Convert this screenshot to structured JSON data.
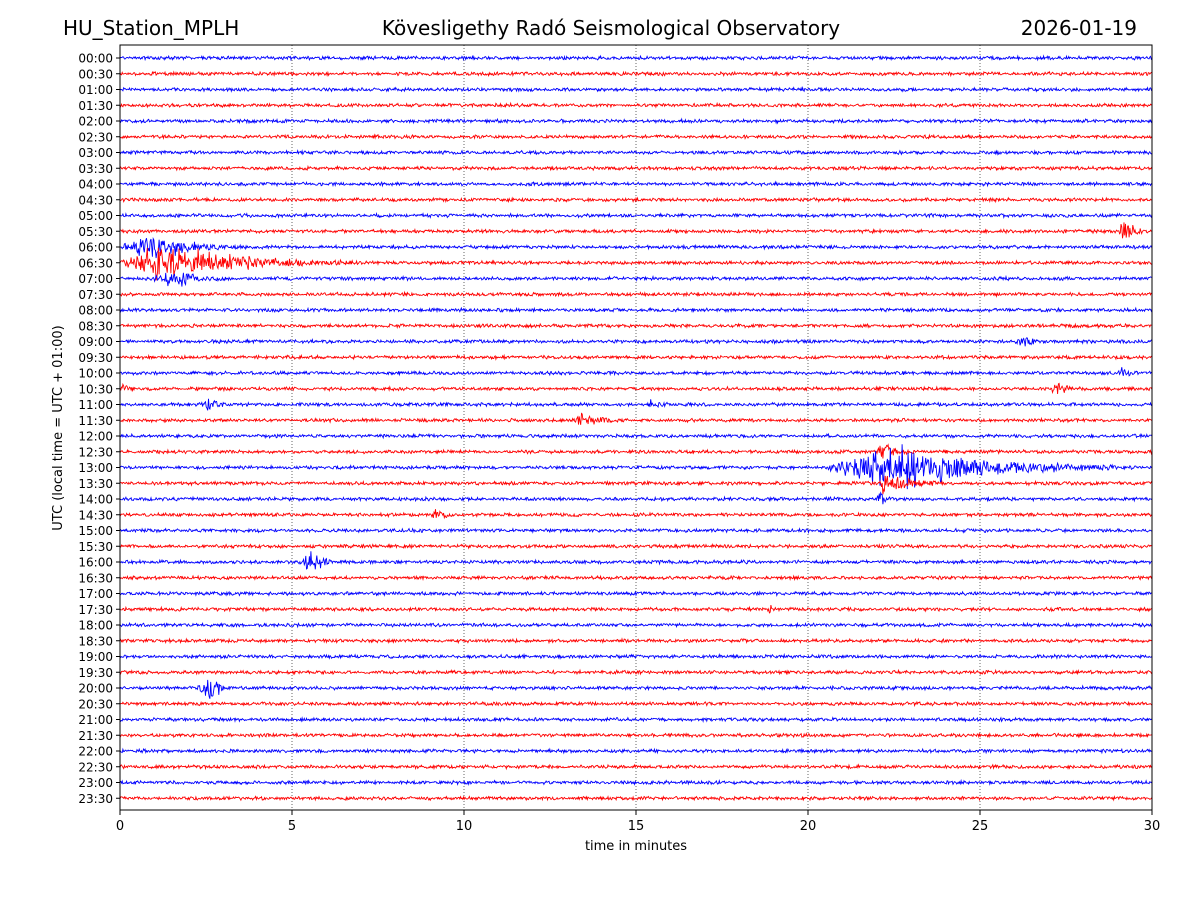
{
  "header": {
    "station": "HU_Station_MPLH",
    "observatory": "Kövesligethy Radó Seismological Observatory",
    "date": "2026-01-19"
  },
  "colors": {
    "even_rows": "#0000ff",
    "odd_rows": "#ff0000",
    "axis": "#000000",
    "grid": "#000000"
  },
  "chart_data": {
    "type": "line",
    "title": "Kövesligethy Radó Seismological Observatory",
    "xlabel": "time in minutes",
    "ylabel": "UTC (local time = UTC + 01:00)",
    "xlim": [
      0,
      30
    ],
    "x_ticks": [
      0,
      5,
      10,
      15,
      20,
      25,
      30
    ],
    "x_tick_labels": [
      "0",
      "5",
      "10",
      "15",
      "20",
      "25",
      "30"
    ],
    "grid": "vertical dotted lines at x ticks",
    "row_labels": [
      "00:00",
      "00:30",
      "01:00",
      "01:30",
      "02:00",
      "02:30",
      "03:00",
      "03:30",
      "04:00",
      "04:30",
      "05:00",
      "05:30",
      "06:00",
      "06:30",
      "07:00",
      "07:30",
      "08:00",
      "08:30",
      "09:00",
      "09:30",
      "10:00",
      "10:30",
      "11:00",
      "11:30",
      "12:00",
      "12:30",
      "13:00",
      "13:30",
      "14:00",
      "14:30",
      "15:00",
      "15:30",
      "16:00",
      "16:30",
      "17:00",
      "17:30",
      "18:00",
      "18:30",
      "19:00",
      "19:30",
      "20:00",
      "20:30",
      "21:00",
      "21:30",
      "22:00",
      "22:30",
      "23:00",
      "23:30"
    ],
    "noise_level": 0.18,
    "events": [
      {
        "row": 11,
        "start": 29.0,
        "peak": 29.2,
        "end": 30.0,
        "amp": 1.2
      },
      {
        "row": 12,
        "start": 0.0,
        "peak": 1.0,
        "end": 3.5,
        "amp": 1.4
      },
      {
        "row": 13,
        "start": 0.0,
        "peak": 1.2,
        "end": 7.0,
        "amp": 2.0
      },
      {
        "row": 14,
        "start": 0.8,
        "peak": 1.7,
        "end": 3.0,
        "amp": 0.8
      },
      {
        "row": 18,
        "start": 26.0,
        "peak": 26.2,
        "end": 26.8,
        "amp": 0.6
      },
      {
        "row": 20,
        "start": 29.0,
        "peak": 29.1,
        "end": 29.6,
        "amp": 0.7
      },
      {
        "row": 21,
        "start": 0.0,
        "peak": 0.1,
        "end": 0.5,
        "amp": 0.6
      },
      {
        "row": 21,
        "start": 27.0,
        "peak": 27.3,
        "end": 27.8,
        "amp": 0.8
      },
      {
        "row": 22,
        "start": 2.3,
        "peak": 2.6,
        "end": 3.4,
        "amp": 0.6
      },
      {
        "row": 22,
        "start": 15.3,
        "peak": 15.4,
        "end": 16.0,
        "amp": 0.6
      },
      {
        "row": 23,
        "start": 13.2,
        "peak": 13.4,
        "end": 14.5,
        "amp": 0.7
      },
      {
        "row": 25,
        "start": 22.0,
        "peak": 22.2,
        "end": 23.0,
        "amp": 1.0
      },
      {
        "row": 26,
        "start": 20.5,
        "peak": 22.3,
        "end": 29.0,
        "amp": 2.4
      },
      {
        "row": 27,
        "start": 22.0,
        "peak": 22.2,
        "end": 24.0,
        "amp": 1.0
      },
      {
        "row": 28,
        "start": 22.0,
        "peak": 22.1,
        "end": 22.5,
        "amp": 0.8
      },
      {
        "row": 29,
        "start": 9.0,
        "peak": 9.2,
        "end": 9.6,
        "amp": 0.7
      },
      {
        "row": 32,
        "start": 5.3,
        "peak": 5.6,
        "end": 6.2,
        "amp": 1.6
      },
      {
        "row": 35,
        "start": 18.8,
        "peak": 18.9,
        "end": 19.1,
        "amp": 0.5
      },
      {
        "row": 40,
        "start": 2.2,
        "peak": 2.7,
        "end": 3.2,
        "amp": 1.5
      }
    ]
  }
}
